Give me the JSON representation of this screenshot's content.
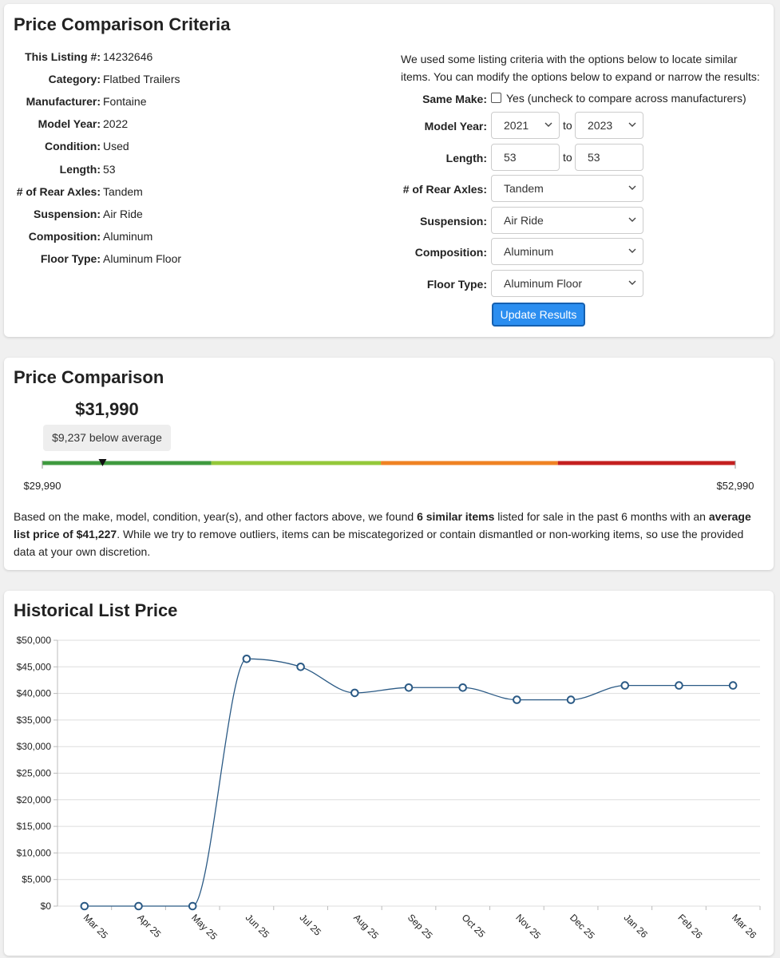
{
  "criteria": {
    "title": "Price Comparison Criteria",
    "fields": [
      {
        "label": "This Listing #:",
        "value": 14232646
      },
      {
        "label": "Category:",
        "value": "Flatbed Trailers"
      },
      {
        "label": "Manufacturer:",
        "value": "Fontaine"
      },
      {
        "label": "Model Year:",
        "value": 2022
      },
      {
        "label": "Condition:",
        "value": "Used"
      },
      {
        "label": "Length:",
        "value": 53
      },
      {
        "label": "# of Rear Axles:",
        "value": "Tandem"
      },
      {
        "label": "Suspension:",
        "value": "Air Ride"
      },
      {
        "label": "Composition:",
        "value": "Aluminum"
      },
      {
        "label": "Floor Type:",
        "value": "Aluminum Floor"
      }
    ],
    "intro": "We used some listing criteria with the options below to locate similar items. You can modify the options below to expand or narrow the results:",
    "same_make": {
      "label": "Same Make:",
      "option": "Yes (uncheck to compare across manufacturers)"
    },
    "range_word": "to",
    "filters": [
      {
        "label": "Model Year:",
        "from": 2021,
        "to": 2023,
        "kind": "select"
      },
      {
        "label": "Length:",
        "from": 53,
        "to": 53,
        "kind": "input"
      },
      {
        "label": "# of Rear Axles:",
        "value": "Tandem"
      },
      {
        "label": "Suspension:",
        "value": "Air Ride"
      },
      {
        "label": "Composition:",
        "value": "Aluminum"
      },
      {
        "label": "Floor Type:",
        "value": "Aluminum Floor"
      }
    ],
    "button": "Update Results"
  },
  "comparison": {
    "title": "Price Comparison",
    "price": {
      "value": 31990,
      "label": "$31,990"
    },
    "badge": "$9,237 below average",
    "min": {
      "value": 29990,
      "label": "$29,990"
    },
    "max": {
      "value": 52990,
      "label": "$52,990"
    },
    "segment_edges": [
      29990,
      35600,
      41227,
      47100,
      52990
    ],
    "segment_colors": [
      "#3f9a3f",
      "#94c83a",
      "#ef8223",
      "#c41f1f"
    ],
    "summary": [
      "Based on the make, model, condition, year(s), and other factors above, we found ",
      "6 similar items",
      " listed for sale in the past 6 months with an ",
      "average list price of $41,227",
      ". While we try to remove outliers, items can be miscategorized or contain dismantled or non-working items, so use the provided data at your own discretion."
    ]
  },
  "chart_data": {
    "type": "line",
    "title": "Historical List Price",
    "categories": [
      "Mar 25",
      "Apr 25",
      "May 25",
      "Jun 25",
      "Jul 25",
      "Aug 25",
      "Sep 25",
      "Oct 25",
      "Nov 25",
      "Dec 25",
      "Jan 26",
      "Feb 26",
      "Mar 26"
    ],
    "values": [
      0,
      0,
      0,
      46500,
      45000,
      40100,
      41100,
      41100,
      38800,
      38800,
      41500,
      41500,
      41500
    ],
    "color": "#2b5a85",
    "grid": true,
    "ylim": [
      0,
      50000
    ],
    "yticks": [
      {
        "value": 0,
        "label": "$0"
      },
      {
        "value": 5000,
        "label": "$5,000"
      },
      {
        "value": 10000,
        "label": "$10,000"
      },
      {
        "value": 15000,
        "label": "$15,000"
      },
      {
        "value": 20000,
        "label": "$20,000"
      },
      {
        "value": 25000,
        "label": "$25,000"
      },
      {
        "value": 30000,
        "label": "$30,000"
      },
      {
        "value": 35000,
        "label": "$35,000"
      },
      {
        "value": 40000,
        "label": "$40,000"
      },
      {
        "value": 45000,
        "label": "$45,000"
      },
      {
        "value": 50000,
        "label": "$50,000"
      }
    ]
  }
}
